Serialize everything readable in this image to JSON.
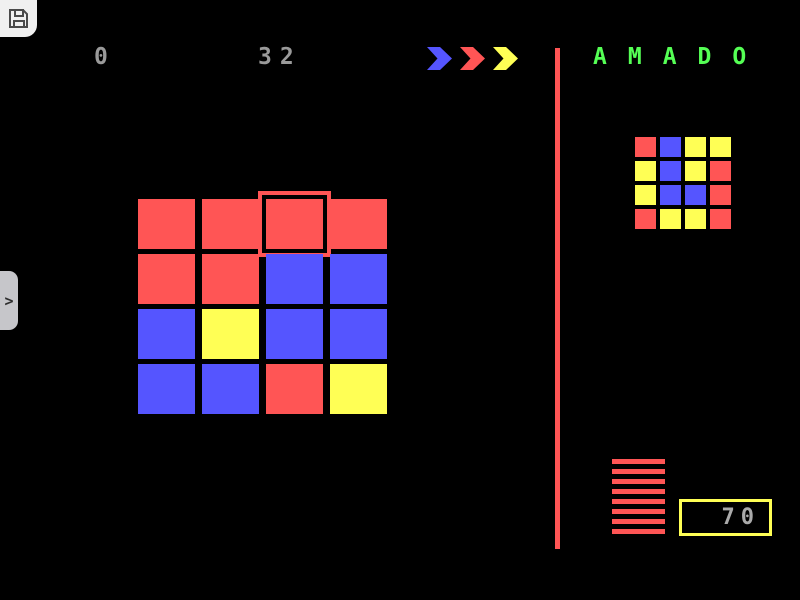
{
  "app": {
    "title": "AMADO"
  },
  "palette": {
    "red": "#ff5555",
    "blue": "#5555ff",
    "yellow": "#ffff55",
    "green": "#55ff55",
    "gray_text": "#9a9a9a",
    "divider_red": "#ff5555",
    "cursor_red": "#ff5555",
    "score_border_yellow": "#ffff55"
  },
  "toolbar": {
    "save_icon": "floppy-disk-icon",
    "counter_left": "0",
    "counter_right": "32",
    "arrow_colors": [
      "blue",
      "red",
      "yellow"
    ]
  },
  "drawer": {
    "toggle_glyph": ">"
  },
  "board": {
    "rows": [
      [
        "red",
        "red",
        "red",
        "red"
      ],
      [
        "red",
        "red",
        "blue",
        "blue"
      ],
      [
        "blue",
        "yellow",
        "blue",
        "blue"
      ],
      [
        "blue",
        "blue",
        "red",
        "yellow"
      ]
    ],
    "cursor": {
      "row": 0,
      "col": 2
    }
  },
  "target": {
    "rows": [
      [
        "red",
        "blue",
        "yellow",
        "yellow"
      ],
      [
        "yellow",
        "blue",
        "yellow",
        "red"
      ],
      [
        "yellow",
        "blue",
        "blue",
        "red"
      ],
      [
        "red",
        "yellow",
        "yellow",
        "red"
      ]
    ]
  },
  "progress_stack": {
    "count": 8
  },
  "score_box": {
    "value": "70"
  }
}
